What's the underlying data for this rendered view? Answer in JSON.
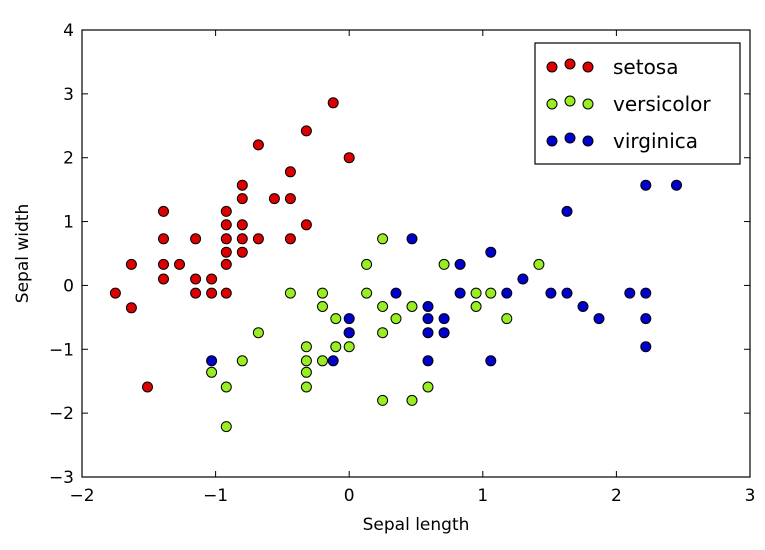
{
  "chart_data": {
    "type": "scatter",
    "title": "",
    "xlabel": "Sepal length",
    "ylabel": "Sepal width",
    "xlim": [
      -2,
      3
    ],
    "ylim": [
      -3,
      4
    ],
    "xticks": [
      -2,
      -1,
      0,
      1,
      2,
      3
    ],
    "yticks": [
      -3,
      -2,
      -1,
      0,
      1,
      2,
      3,
      4
    ],
    "xtick_labels": [
      "−2",
      "−1",
      "0",
      "1",
      "2",
      "3"
    ],
    "ytick_labels": [
      "−3",
      "−2",
      "−1",
      "0",
      "1",
      "2",
      "3",
      "4"
    ],
    "grid": false,
    "legend_position": "top-right",
    "series": [
      {
        "name": "setosa",
        "color": "#dd0000",
        "points": [
          [
            -1.75,
            -0.12
          ],
          [
            -1.63,
            0.33
          ],
          [
            -1.63,
            -0.35
          ],
          [
            -1.51,
            -1.59
          ],
          [
            -1.39,
            1.16
          ],
          [
            -1.39,
            0.73
          ],
          [
            -1.39,
            0.33
          ],
          [
            -1.39,
            0.1
          ],
          [
            -1.27,
            0.33
          ],
          [
            -1.15,
            0.73
          ],
          [
            -1.15,
            0.1
          ],
          [
            -1.15,
            -0.12
          ],
          [
            -1.03,
            0.1
          ],
          [
            -1.03,
            -0.12
          ],
          [
            -0.92,
            1.16
          ],
          [
            -0.92,
            0.95
          ],
          [
            -0.92,
            0.73
          ],
          [
            -0.92,
            0.52
          ],
          [
            -0.92,
            0.33
          ],
          [
            -0.92,
            -0.12
          ],
          [
            -0.8,
            1.57
          ],
          [
            -0.8,
            1.36
          ],
          [
            -0.8,
            0.95
          ],
          [
            -0.8,
            0.73
          ],
          [
            -0.8,
            0.52
          ],
          [
            -0.68,
            2.2
          ],
          [
            -0.68,
            0.73
          ],
          [
            -0.56,
            1.36
          ],
          [
            -0.44,
            1.78
          ],
          [
            -0.44,
            1.36
          ],
          [
            -0.44,
            0.73
          ],
          [
            -0.32,
            2.42
          ],
          [
            -0.32,
            0.95
          ],
          [
            -0.12,
            2.86
          ],
          [
            0.0,
            2.0
          ]
        ]
      },
      {
        "name": "versicolor",
        "color": "#99ee22",
        "points": [
          [
            -1.03,
            -1.36
          ],
          [
            -0.92,
            -1.59
          ],
          [
            -0.92,
            -2.21
          ],
          [
            -0.8,
            -1.18
          ],
          [
            -0.68,
            -0.74
          ],
          [
            -0.44,
            -0.12
          ],
          [
            -0.32,
            -0.96
          ],
          [
            -0.32,
            -1.18
          ],
          [
            -0.32,
            -1.36
          ],
          [
            -0.32,
            -1.59
          ],
          [
            -0.2,
            -0.12
          ],
          [
            -0.2,
            -0.33
          ],
          [
            -0.2,
            -1.18
          ],
          [
            -0.1,
            -0.52
          ],
          [
            -0.1,
            -0.96
          ],
          [
            0.0,
            -0.74
          ],
          [
            0.0,
            -0.96
          ],
          [
            0.13,
            0.33
          ],
          [
            0.13,
            -0.12
          ],
          [
            0.25,
            0.73
          ],
          [
            0.25,
            -0.33
          ],
          [
            0.25,
            -0.74
          ],
          [
            0.25,
            -1.8
          ],
          [
            0.35,
            -0.52
          ],
          [
            0.47,
            -0.33
          ],
          [
            0.47,
            -1.8
          ],
          [
            0.59,
            -1.59
          ],
          [
            0.71,
            0.33
          ],
          [
            0.95,
            -0.33
          ],
          [
            0.95,
            -0.12
          ],
          [
            1.06,
            -0.12
          ],
          [
            1.18,
            -0.52
          ],
          [
            1.42,
            0.33
          ]
        ]
      },
      {
        "name": "virginica",
        "color": "#0000cc",
        "points": [
          [
            -1.03,
            -1.18
          ],
          [
            -0.12,
            -1.18
          ],
          [
            0.0,
            -0.52
          ],
          [
            0.0,
            -0.74
          ],
          [
            0.35,
            -0.12
          ],
          [
            0.47,
            0.73
          ],
          [
            0.59,
            -0.33
          ],
          [
            0.59,
            -0.52
          ],
          [
            0.59,
            -0.74
          ],
          [
            0.59,
            -1.18
          ],
          [
            0.71,
            -0.52
          ],
          [
            0.71,
            -0.74
          ],
          [
            0.83,
            0.33
          ],
          [
            0.83,
            -0.12
          ],
          [
            1.06,
            0.52
          ],
          [
            1.06,
            -1.18
          ],
          [
            1.18,
            -0.12
          ],
          [
            1.3,
            0.1
          ],
          [
            1.51,
            -0.12
          ],
          [
            1.63,
            1.16
          ],
          [
            1.63,
            -0.12
          ],
          [
            1.75,
            -0.33
          ],
          [
            1.87,
            -0.52
          ],
          [
            2.1,
            -0.12
          ],
          [
            2.22,
            1.57
          ],
          [
            2.22,
            -0.12
          ],
          [
            2.22,
            -0.52
          ],
          [
            2.22,
            -0.96
          ],
          [
            2.45,
            1.57
          ]
        ]
      }
    ]
  }
}
